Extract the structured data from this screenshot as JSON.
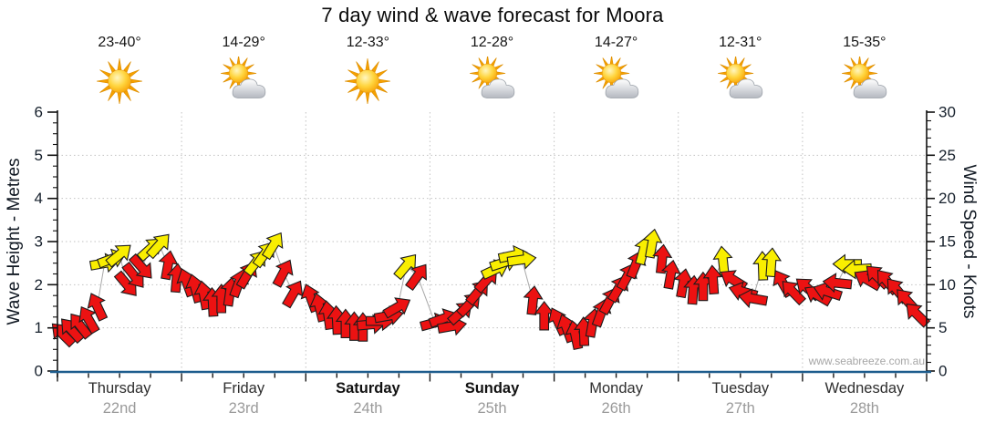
{
  "chart_data": {
    "type": "wind-arrows-forecast",
    "title": "7 day wind & wave forecast for Moora",
    "watermark": "www.seabreeze.com.au",
    "y_left": {
      "label": "Wave Height - Metres",
      "min": 0,
      "max": 6,
      "ticks": [
        0,
        1,
        2,
        3,
        4,
        5,
        6
      ]
    },
    "y_right": {
      "label": "Wind Speed - Knots",
      "min": 0,
      "max": 30,
      "ticks": [
        0,
        5,
        10,
        15,
        20,
        25,
        30
      ]
    },
    "grid": {
      "horizontal_dotted_at_metres": [
        1,
        2,
        3,
        4,
        5
      ],
      "vertical_dotted_day_separators": true
    },
    "days": [
      {
        "name": "Thursday",
        "date": "22nd",
        "bold": false,
        "temp": "23-40°",
        "icon": "sunny"
      },
      {
        "name": "Friday",
        "date": "23rd",
        "bold": false,
        "temp": "14-29°",
        "icon": "partly-cloudy"
      },
      {
        "name": "Saturday",
        "date": "24th",
        "bold": true,
        "temp": "12-33°",
        "icon": "sunny"
      },
      {
        "name": "Sunday",
        "date": "25th",
        "bold": true,
        "temp": "12-28°",
        "icon": "partly-cloudy"
      },
      {
        "name": "Monday",
        "date": "26th",
        "bold": false,
        "temp": "14-27°",
        "icon": "partly-cloudy"
      },
      {
        "name": "Tuesday",
        "date": "27th",
        "bold": false,
        "temp": "12-31°",
        "icon": "partly-cloudy"
      },
      {
        "name": "Wednesday",
        "date": "28th",
        "bold": false,
        "temp": "15-35°",
        "icon": "partly-cloudy"
      }
    ],
    "colors": {
      "red": "#ec1212",
      "yellow": "#f9ee00",
      "outline": "#1c1c1c",
      "axis": "#1d5c8d",
      "grid": "#c2c2c2",
      "connector": "#a8a8a8",
      "text": "#111111",
      "date_gray": "#9a9a9a",
      "watermark_gray": "#a6a6a6"
    },
    "arrows": {
      "format": [
        "day_index",
        "time_fraction_of_day",
        "knots",
        "dir_deg_0up_90right",
        "color_code"
      ],
      "color_codes": {
        "r": "red",
        "y": "yellow"
      },
      "points": [
        [
          0,
          0.04,
          4.3,
          -45,
          "r"
        ],
        [
          0,
          0.11,
          4.8,
          -42,
          "r"
        ],
        [
          0,
          0.18,
          5.3,
          -38,
          "r"
        ],
        [
          0,
          0.25,
          6.0,
          -30,
          "r"
        ],
        [
          0,
          0.32,
          7.5,
          -25,
          "r"
        ],
        [
          0,
          0.38,
          12.5,
          80,
          "y"
        ],
        [
          0,
          0.44,
          13.0,
          70,
          "y"
        ],
        [
          0,
          0.5,
          13.5,
          50,
          "y"
        ],
        [
          0,
          0.56,
          10.0,
          140,
          "r"
        ],
        [
          0,
          0.62,
          11.0,
          142,
          "r"
        ],
        [
          0,
          0.68,
          12.0,
          138,
          "r"
        ],
        [
          0,
          0.75,
          14.2,
          48,
          "y"
        ],
        [
          0,
          0.82,
          14.6,
          42,
          "y"
        ],
        [
          0,
          0.89,
          12.3,
          10,
          "r"
        ],
        [
          0,
          0.96,
          10.8,
          5,
          "r"
        ],
        [
          1,
          0.04,
          10.3,
          -20,
          "r"
        ],
        [
          1,
          0.11,
          9.6,
          -15,
          "r"
        ],
        [
          1,
          0.18,
          8.8,
          -10,
          "r"
        ],
        [
          1,
          0.25,
          8.0,
          -3,
          "r"
        ],
        [
          1,
          0.32,
          8.4,
          0,
          "r"
        ],
        [
          1,
          0.39,
          9.2,
          8,
          "r"
        ],
        [
          1,
          0.46,
          10.2,
          20,
          "r"
        ],
        [
          1,
          0.53,
          11.2,
          30,
          "r"
        ],
        [
          1,
          0.6,
          12.6,
          38,
          "y"
        ],
        [
          1,
          0.67,
          13.6,
          36,
          "y"
        ],
        [
          1,
          0.74,
          14.6,
          32,
          "y"
        ],
        [
          1,
          0.82,
          11.4,
          28,
          "r"
        ],
        [
          1,
          0.9,
          9.0,
          30,
          "r"
        ],
        [
          2,
          0.04,
          8.5,
          -20,
          "r"
        ],
        [
          2,
          0.11,
          7.4,
          -14,
          "r"
        ],
        [
          2,
          0.18,
          6.5,
          -8,
          "r"
        ],
        [
          2,
          0.25,
          5.9,
          -3,
          "r"
        ],
        [
          2,
          0.32,
          5.5,
          0,
          "r"
        ],
        [
          2,
          0.39,
          5.2,
          0,
          "r"
        ],
        [
          2,
          0.46,
          5.1,
          0,
          "r"
        ],
        [
          2,
          0.53,
          5.4,
          85,
          "r"
        ],
        [
          2,
          0.6,
          5.8,
          90,
          "r"
        ],
        [
          2,
          0.67,
          6.4,
          80,
          "r"
        ],
        [
          2,
          0.74,
          7.4,
          60,
          "r"
        ],
        [
          2,
          0.81,
          12.2,
          40,
          "y"
        ],
        [
          2,
          0.9,
          11.0,
          36,
          "r"
        ],
        [
          3,
          0.04,
          5.6,
          75,
          "r"
        ],
        [
          3,
          0.11,
          6.1,
          70,
          "r"
        ],
        [
          3,
          0.18,
          5.2,
          80,
          "r"
        ],
        [
          3,
          0.25,
          6.8,
          48,
          "r"
        ],
        [
          3,
          0.32,
          7.8,
          44,
          "r"
        ],
        [
          3,
          0.39,
          9.2,
          40,
          "r"
        ],
        [
          3,
          0.46,
          10.6,
          42,
          "r"
        ],
        [
          3,
          0.53,
          11.8,
          65,
          "y"
        ],
        [
          3,
          0.6,
          12.6,
          72,
          "y"
        ],
        [
          3,
          0.67,
          13.4,
          78,
          "y"
        ],
        [
          3,
          0.74,
          12.9,
          82,
          "y"
        ],
        [
          3,
          0.83,
          8.2,
          6,
          "r"
        ],
        [
          3,
          0.92,
          6.4,
          0,
          "r"
        ],
        [
          4,
          0.03,
          5.8,
          -25,
          "r"
        ],
        [
          4,
          0.1,
          5.0,
          -20,
          "r"
        ],
        [
          4,
          0.17,
          4.2,
          -12,
          "r"
        ],
        [
          4,
          0.24,
          4.6,
          -2,
          "r"
        ],
        [
          4,
          0.31,
          5.6,
          10,
          "r"
        ],
        [
          4,
          0.38,
          6.8,
          20,
          "r"
        ],
        [
          4,
          0.45,
          8.2,
          28,
          "r"
        ],
        [
          4,
          0.52,
          9.6,
          30,
          "r"
        ],
        [
          4,
          0.59,
          11.0,
          28,
          "r"
        ],
        [
          4,
          0.66,
          12.4,
          22,
          "r"
        ],
        [
          4,
          0.72,
          14.0,
          15,
          "y"
        ],
        [
          4,
          0.79,
          14.8,
          10,
          "y"
        ],
        [
          4,
          0.87,
          13.0,
          6,
          "r"
        ],
        [
          4,
          0.94,
          11.2,
          10,
          "r"
        ],
        [
          5,
          0.04,
          10.2,
          10,
          "r"
        ],
        [
          5,
          0.12,
          9.4,
          4,
          "r"
        ],
        [
          5,
          0.2,
          9.8,
          0,
          "r"
        ],
        [
          5,
          0.28,
          10.6,
          -4,
          "r"
        ],
        [
          5,
          0.36,
          12.8,
          -6,
          "y"
        ],
        [
          5,
          0.44,
          10.6,
          -58,
          "r"
        ],
        [
          5,
          0.52,
          9.2,
          -74,
          "r"
        ],
        [
          5,
          0.6,
          8.4,
          -80,
          "r"
        ],
        [
          5,
          0.68,
          12.2,
          -2,
          "y"
        ],
        [
          5,
          0.75,
          12.6,
          4,
          "y"
        ],
        [
          5,
          0.84,
          10.2,
          -30,
          "r"
        ],
        [
          5,
          0.92,
          9.2,
          -44,
          "r"
        ],
        [
          6,
          0.04,
          9.6,
          -50,
          "r"
        ],
        [
          6,
          0.12,
          8.8,
          -60,
          "r"
        ],
        [
          6,
          0.2,
          9.2,
          -72,
          "r"
        ],
        [
          6,
          0.28,
          10.2,
          -84,
          "r"
        ],
        [
          6,
          0.36,
          12.4,
          -90,
          "y"
        ],
        [
          6,
          0.44,
          11.8,
          -94,
          "y"
        ],
        [
          6,
          0.52,
          10.6,
          -60,
          "r"
        ],
        [
          6,
          0.6,
          11.0,
          -46,
          "r"
        ],
        [
          6,
          0.68,
          10.4,
          -40,
          "r"
        ],
        [
          6,
          0.76,
          9.4,
          -40,
          "r"
        ],
        [
          6,
          0.84,
          8.2,
          -42,
          "r"
        ],
        [
          6,
          0.92,
          6.6,
          -45,
          "r"
        ]
      ]
    }
  }
}
